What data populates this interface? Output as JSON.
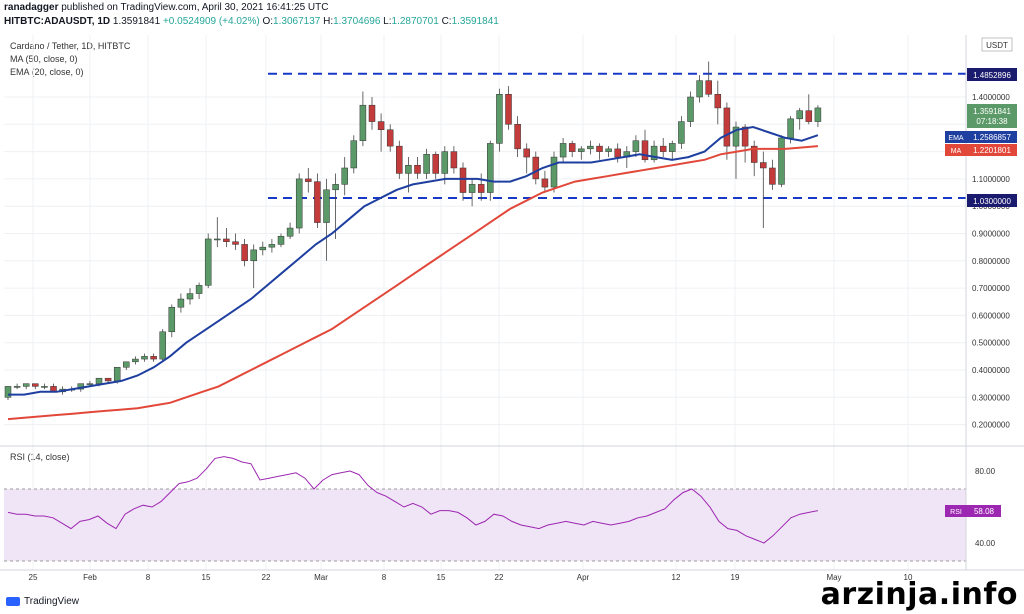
{
  "header": {
    "publisher": "ranadagger",
    "published_text": "published on TradingView.com, April 30, 2021 16:41:25 UTC",
    "symbol": "HITBTC:ADAUSDT, 1D",
    "last": "1.3591841",
    "change": "+0.0524909 (+4.02%)",
    "o_label": "O:",
    "o": "1.3067137",
    "h_label": "H:",
    "h": "1.3704696",
    "l_label": "L:",
    "l": "1.2870701",
    "c_label": "C:",
    "c": "1.3591841"
  },
  "legend": {
    "title": "Cardano / Tether, 1D, HITBTC",
    "ma": "MA (50, close, 0)",
    "ema": "EMA (20, close, 0)"
  },
  "rsi": {
    "title": "RSI (14, close)",
    "badge_label": "RSI",
    "badge_value": "58.08"
  },
  "price_badges": {
    "currency": "USDT",
    "top": "1.4852896",
    "last": "1.3591841",
    "timer": "07:18:38",
    "ema_label": "EMA",
    "ema": "1.2586857",
    "ma_label": "MA",
    "ma": "1.2201801",
    "bottom": "1.0300000"
  },
  "footer": {
    "logo_text": "TradingView",
    "watermark": "arzinja.info"
  },
  "colors": {
    "up": "#5b9a68",
    "down": "#c43b3b",
    "ema": "#1e3fa0",
    "ma": "#e2483a",
    "level": "#1838c8",
    "rsi": "#9c27b0",
    "rsi_band": "#f0e4f7"
  },
  "chart_data": {
    "type": "candlestick",
    "y_axis_ticks": [
      "1.4000000",
      "1.3000000",
      "1.2000000",
      "1.1000000",
      "1.0000000",
      "0.9000000",
      "0.8000000",
      "0.7000000",
      "0.6000000",
      "0.5000000",
      "0.4000000",
      "0.3000000",
      "0.2000000"
    ],
    "x_axis_ticks": [
      "25",
      "Feb",
      "8",
      "15",
      "22",
      "Mar",
      "8",
      "15",
      "22",
      "Apr",
      "12",
      "19",
      "May",
      "10"
    ],
    "rsi_ticks": [
      "80.00",
      "40.00"
    ],
    "levels": [
      1.4852896,
      1.03
    ],
    "candles": [
      [
        0.3,
        0.34,
        0.29,
        0.34
      ],
      [
        0.34,
        0.35,
        0.33,
        0.34
      ],
      [
        0.34,
        0.35,
        0.33,
        0.35
      ],
      [
        0.35,
        0.35,
        0.33,
        0.34
      ],
      [
        0.34,
        0.35,
        0.33,
        0.34
      ],
      [
        0.34,
        0.35,
        0.32,
        0.32
      ],
      [
        0.32,
        0.34,
        0.31,
        0.33
      ],
      [
        0.33,
        0.34,
        0.32,
        0.33
      ],
      [
        0.33,
        0.35,
        0.32,
        0.35
      ],
      [
        0.35,
        0.36,
        0.34,
        0.35
      ],
      [
        0.35,
        0.37,
        0.34,
        0.37
      ],
      [
        0.37,
        0.37,
        0.35,
        0.36
      ],
      [
        0.36,
        0.41,
        0.35,
        0.41
      ],
      [
        0.41,
        0.43,
        0.4,
        0.43
      ],
      [
        0.43,
        0.45,
        0.42,
        0.44
      ],
      [
        0.44,
        0.46,
        0.43,
        0.45
      ],
      [
        0.45,
        0.46,
        0.43,
        0.44
      ],
      [
        0.44,
        0.55,
        0.43,
        0.54
      ],
      [
        0.54,
        0.64,
        0.52,
        0.63
      ],
      [
        0.63,
        0.68,
        0.61,
        0.66
      ],
      [
        0.66,
        0.7,
        0.64,
        0.68
      ],
      [
        0.68,
        0.72,
        0.66,
        0.71
      ],
      [
        0.71,
        0.9,
        0.7,
        0.88
      ],
      [
        0.88,
        0.96,
        0.85,
        0.88
      ],
      [
        0.88,
        0.92,
        0.85,
        0.87
      ],
      [
        0.87,
        0.9,
        0.84,
        0.86
      ],
      [
        0.86,
        0.88,
        0.78,
        0.8
      ],
      [
        0.8,
        0.86,
        0.7,
        0.84
      ],
      [
        0.84,
        0.87,
        0.82,
        0.85
      ],
      [
        0.85,
        0.88,
        0.83,
        0.86
      ],
      [
        0.86,
        0.9,
        0.85,
        0.89
      ],
      [
        0.89,
        0.94,
        0.88,
        0.92
      ],
      [
        0.92,
        1.12,
        0.9,
        1.1
      ],
      [
        1.1,
        1.14,
        1.05,
        1.09
      ],
      [
        1.09,
        1.12,
        0.92,
        0.94
      ],
      [
        0.94,
        1.1,
        0.8,
        1.06
      ],
      [
        1.06,
        1.12,
        0.88,
        1.08
      ],
      [
        1.08,
        1.18,
        1.04,
        1.14
      ],
      [
        1.14,
        1.26,
        1.12,
        1.24
      ],
      [
        1.24,
        1.42,
        1.22,
        1.37
      ],
      [
        1.37,
        1.4,
        1.28,
        1.31
      ],
      [
        1.31,
        1.34,
        1.2,
        1.28
      ],
      [
        1.28,
        1.3,
        1.2,
        1.22
      ],
      [
        1.22,
        1.24,
        1.1,
        1.12
      ],
      [
        1.12,
        1.18,
        1.05,
        1.15
      ],
      [
        1.15,
        1.18,
        1.1,
        1.12
      ],
      [
        1.12,
        1.21,
        1.1,
        1.19
      ],
      [
        1.19,
        1.2,
        1.1,
        1.12
      ],
      [
        1.12,
        1.22,
        1.08,
        1.2
      ],
      [
        1.2,
        1.22,
        1.12,
        1.14
      ],
      [
        1.14,
        1.16,
        1.02,
        1.05
      ],
      [
        1.05,
        1.1,
        1.0,
        1.08
      ],
      [
        1.08,
        1.12,
        1.02,
        1.05
      ],
      [
        1.05,
        1.24,
        1.02,
        1.23
      ],
      [
        1.23,
        1.43,
        1.2,
        1.41
      ],
      [
        1.41,
        1.44,
        1.28,
        1.3
      ],
      [
        1.3,
        1.33,
        1.18,
        1.21
      ],
      [
        1.21,
        1.23,
        1.12,
        1.18
      ],
      [
        1.18,
        1.2,
        1.08,
        1.1
      ],
      [
        1.1,
        1.13,
        1.05,
        1.07
      ],
      [
        1.07,
        1.2,
        1.05,
        1.18
      ],
      [
        1.18,
        1.25,
        1.16,
        1.23
      ],
      [
        1.23,
        1.24,
        1.18,
        1.2
      ],
      [
        1.2,
        1.22,
        1.17,
        1.21
      ],
      [
        1.21,
        1.24,
        1.19,
        1.22
      ],
      [
        1.22,
        1.23,
        1.17,
        1.2
      ],
      [
        1.2,
        1.22,
        1.18,
        1.21
      ],
      [
        1.21,
        1.23,
        1.16,
        1.18
      ],
      [
        1.18,
        1.22,
        1.14,
        1.2
      ],
      [
        1.2,
        1.26,
        1.18,
        1.24
      ],
      [
        1.24,
        1.28,
        1.16,
        1.17
      ],
      [
        1.17,
        1.24,
        1.16,
        1.22
      ],
      [
        1.22,
        1.25,
        1.18,
        1.2
      ],
      [
        1.2,
        1.24,
        1.17,
        1.23
      ],
      [
        1.23,
        1.33,
        1.21,
        1.31
      ],
      [
        1.31,
        1.42,
        1.29,
        1.4
      ],
      [
        1.4,
        1.48,
        1.38,
        1.46
      ],
      [
        1.46,
        1.53,
        1.4,
        1.41
      ],
      [
        1.41,
        1.46,
        1.3,
        1.36
      ],
      [
        1.36,
        1.38,
        1.17,
        1.22
      ],
      [
        1.22,
        1.31,
        1.1,
        1.29
      ],
      [
        1.29,
        1.3,
        1.16,
        1.22
      ],
      [
        1.22,
        1.24,
        1.11,
        1.16
      ],
      [
        1.16,
        1.2,
        0.92,
        1.14
      ],
      [
        1.14,
        1.17,
        1.06,
        1.08
      ],
      [
        1.08,
        1.26,
        1.07,
        1.25
      ],
      [
        1.25,
        1.33,
        1.23,
        1.32
      ],
      [
        1.32,
        1.36,
        1.28,
        1.35
      ],
      [
        1.35,
        1.41,
        1.3,
        1.31
      ],
      [
        1.31,
        1.37,
        1.29,
        1.36
      ]
    ],
    "ema20": [
      0.31,
      0.31,
      0.32,
      0.32,
      0.33,
      0.34,
      0.35,
      0.36,
      0.38,
      0.41,
      0.45,
      0.5,
      0.54,
      0.58,
      0.62,
      0.66,
      0.71,
      0.76,
      0.81,
      0.86,
      0.9,
      0.95,
      1.0,
      1.03,
      1.06,
      1.08,
      1.09,
      1.1,
      1.1,
      1.1,
      1.09,
      1.09,
      1.11,
      1.14,
      1.16,
      1.16,
      1.16,
      1.17,
      1.18,
      1.19,
      1.18,
      1.17,
      1.18,
      1.2,
      1.25,
      1.28,
      1.29,
      1.27,
      1.25,
      1.24,
      1.26
    ],
    "ema20_start": 0,
    "ma50": [
      0.22,
      0.225,
      0.23,
      0.235,
      0.24,
      0.245,
      0.25,
      0.255,
      0.26,
      0.27,
      0.28,
      0.3,
      0.32,
      0.34,
      0.37,
      0.4,
      0.43,
      0.46,
      0.49,
      0.52,
      0.55,
      0.59,
      0.63,
      0.67,
      0.71,
      0.75,
      0.79,
      0.83,
      0.87,
      0.91,
      0.95,
      0.99,
      1.02,
      1.05,
      1.07,
      1.09,
      1.1,
      1.11,
      1.12,
      1.13,
      1.14,
      1.15,
      1.16,
      1.17,
      1.19,
      1.2,
      1.21,
      1.21,
      1.21,
      1.215,
      1.22
    ],
    "rsi": [
      57,
      56,
      56,
      55,
      55,
      54,
      51,
      48,
      52,
      53,
      55,
      51,
      48,
      56,
      59,
      61,
      60,
      63,
      68,
      73,
      74,
      76,
      81,
      87,
      88,
      87,
      85,
      84,
      75,
      76,
      77,
      78,
      79,
      76,
      70,
      75,
      78,
      79,
      80,
      78,
      72,
      68,
      66,
      63,
      60,
      62,
      60,
      56,
      58,
      58,
      57,
      54,
      50,
      52,
      56,
      55,
      52,
      50,
      49,
      48,
      50,
      51,
      52,
      51,
      50,
      52,
      51,
      50,
      51,
      52,
      54,
      55,
      57,
      59,
      64,
      68,
      70,
      66,
      60,
      52,
      48,
      47,
      44,
      42,
      40,
      44,
      49,
      54,
      56,
      57,
      58
    ],
    "rsi_band": [
      30,
      70
    ]
  }
}
